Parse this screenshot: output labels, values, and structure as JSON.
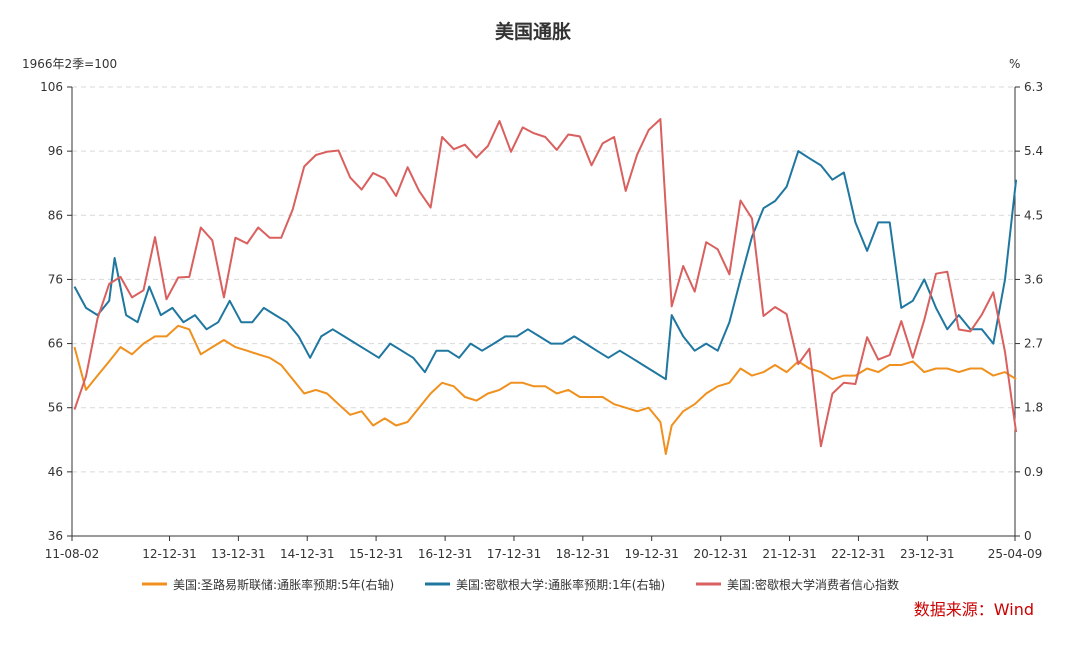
{
  "chart_data": {
    "type": "line",
    "title": "美国通胀",
    "left_unit": "1966年2季=100",
    "right_unit": "%",
    "ylim_left": [
      36,
      106
    ],
    "yticks_left": [
      "106",
      "96",
      "86",
      "76",
      "66",
      "56",
      "46",
      "36"
    ],
    "ylim_right": [
      0,
      6.3
    ],
    "yticks_right": [
      "6.3",
      "5.4",
      "4.5",
      "3.6",
      "2.7",
      "1.8",
      "0.9",
      "0"
    ],
    "x_tick_labels": [
      "11-08-02",
      "12-12-31",
      "13-12-31",
      "14-12-31",
      "15-12-31",
      "16-12-31",
      "17-12-31",
      "18-12-31",
      "19-12-31",
      "20-12-31",
      "21-12-31",
      "22-12-31",
      "23-12-31",
      "25-04-09"
    ],
    "x_range": [
      "2011-08-02",
      "2025-04-09"
    ],
    "grid": "horizontal dashed",
    "legend_position": "bottom",
    "source": "数据来源：Wind",
    "series": [
      {
        "name": "美国:圣路易斯联储:通胀率预期:5年(右轴)",
        "axis": "right",
        "color": "#f0901e",
        "x": [
          "2011-08",
          "2011-10",
          "2011-12",
          "2012-02",
          "2012-04",
          "2012-06",
          "2012-08",
          "2012-10",
          "2012-12",
          "2013-02",
          "2013-04",
          "2013-06",
          "2013-08",
          "2013-10",
          "2013-12",
          "2014-02",
          "2014-04",
          "2014-06",
          "2014-08",
          "2014-10",
          "2014-12",
          "2015-02",
          "2015-04",
          "2015-06",
          "2015-08",
          "2015-10",
          "2015-12",
          "2016-02",
          "2016-04",
          "2016-06",
          "2016-08",
          "2016-10",
          "2016-12",
          "2017-02",
          "2017-04",
          "2017-06",
          "2017-08",
          "2017-10",
          "2017-12",
          "2018-02",
          "2018-04",
          "2018-06",
          "2018-08",
          "2018-10",
          "2018-12",
          "2019-02",
          "2019-04",
          "2019-06",
          "2019-08",
          "2019-10",
          "2019-12",
          "2020-02",
          "2020-03",
          "2020-04",
          "2020-06",
          "2020-08",
          "2020-10",
          "2020-12",
          "2021-02",
          "2021-04",
          "2021-06",
          "2021-08",
          "2021-10",
          "2021-12",
          "2022-02",
          "2022-04",
          "2022-06",
          "2022-08",
          "2022-10",
          "2022-12",
          "2023-02",
          "2023-04",
          "2023-06",
          "2023-08",
          "2023-10",
          "2023-12",
          "2024-02",
          "2024-04",
          "2024-06",
          "2024-08",
          "2024-10",
          "2024-12",
          "2025-02",
          "2025-04"
        ],
        "values": [
          2.65,
          2.05,
          2.25,
          2.45,
          2.65,
          2.55,
          2.7,
          2.8,
          2.8,
          2.95,
          2.9,
          2.55,
          2.65,
          2.75,
          2.65,
          2.6,
          2.55,
          2.5,
          2.4,
          2.2,
          2.0,
          2.05,
          2.0,
          1.85,
          1.7,
          1.75,
          1.55,
          1.65,
          1.55,
          1.6,
          1.8,
          2.0,
          2.15,
          2.1,
          1.95,
          1.9,
          2.0,
          2.05,
          2.15,
          2.15,
          2.1,
          2.1,
          2.0,
          2.05,
          1.95,
          1.95,
          1.95,
          1.85,
          1.8,
          1.75,
          1.8,
          1.6,
          1.15,
          1.55,
          1.75,
          1.85,
          2.0,
          2.1,
          2.15,
          2.35,
          2.25,
          2.3,
          2.4,
          2.3,
          2.45,
          2.35,
          2.3,
          2.2,
          2.25,
          2.25,
          2.35,
          2.3,
          2.4,
          2.4,
          2.45,
          2.3,
          2.35,
          2.35,
          2.3,
          2.35,
          2.35,
          2.25,
          2.3,
          2.2
        ]
      },
      {
        "name": "美国:密歇根大学:通胀率预期:1年(右轴)",
        "axis": "right",
        "color": "#1f77a0",
        "x": [
          "2011-08",
          "2011-10",
          "2011-12",
          "2012-02",
          "2012-03",
          "2012-05",
          "2012-07",
          "2012-09",
          "2012-11",
          "2013-01",
          "2013-03",
          "2013-05",
          "2013-07",
          "2013-09",
          "2013-11",
          "2014-01",
          "2014-03",
          "2014-05",
          "2014-07",
          "2014-09",
          "2014-11",
          "2015-01",
          "2015-03",
          "2015-05",
          "2015-07",
          "2015-09",
          "2015-11",
          "2016-01",
          "2016-03",
          "2016-05",
          "2016-07",
          "2016-09",
          "2016-11",
          "2017-01",
          "2017-03",
          "2017-05",
          "2017-07",
          "2017-09",
          "2017-11",
          "2018-01",
          "2018-03",
          "2018-05",
          "2018-07",
          "2018-09",
          "2018-11",
          "2019-01",
          "2019-03",
          "2019-05",
          "2019-07",
          "2019-09",
          "2019-11",
          "2020-01",
          "2020-03",
          "2020-04",
          "2020-06",
          "2020-08",
          "2020-10",
          "2020-12",
          "2021-02",
          "2021-04",
          "2021-06",
          "2021-08",
          "2021-10",
          "2021-12",
          "2022-02",
          "2022-04",
          "2022-06",
          "2022-08",
          "2022-10",
          "2022-12",
          "2023-02",
          "2023-04",
          "2023-06",
          "2023-08",
          "2023-10",
          "2023-12",
          "2024-02",
          "2024-04",
          "2024-06",
          "2024-08",
          "2024-10",
          "2024-12",
          "2025-02",
          "2025-04"
        ],
        "values": [
          3.5,
          3.2,
          3.1,
          3.3,
          3.9,
          3.1,
          3.0,
          3.5,
          3.1,
          3.2,
          3.0,
          3.1,
          2.9,
          3.0,
          3.3,
          3.0,
          3.0,
          3.2,
          3.1,
          3.0,
          2.8,
          2.5,
          2.8,
          2.9,
          2.8,
          2.7,
          2.6,
          2.5,
          2.7,
          2.6,
          2.5,
          2.3,
          2.6,
          2.6,
          2.5,
          2.7,
          2.6,
          2.7,
          2.8,
          2.8,
          2.9,
          2.8,
          2.7,
          2.7,
          2.8,
          2.7,
          2.6,
          2.5,
          2.6,
          2.5,
          2.4,
          2.3,
          2.2,
          3.1,
          2.8,
          2.6,
          2.7,
          2.6,
          3.0,
          3.6,
          4.2,
          4.6,
          4.7,
          4.9,
          5.4,
          5.3,
          5.2,
          5.0,
          5.1,
          4.4,
          4.0,
          4.4,
          4.4,
          3.2,
          3.3,
          3.6,
          3.2,
          2.9,
          3.1,
          2.9,
          2.9,
          2.7,
          3.6,
          5.0
        ]
      },
      {
        "name": "美国:密歇根大学消费者信心指数",
        "axis": "left",
        "color": "#d9605e",
        "x": [
          "2011-08",
          "2011-10",
          "2011-12",
          "2012-02",
          "2012-04",
          "2012-06",
          "2012-08",
          "2012-10",
          "2012-12",
          "2013-02",
          "2013-04",
          "2013-06",
          "2013-08",
          "2013-10",
          "2013-12",
          "2014-02",
          "2014-04",
          "2014-06",
          "2014-08",
          "2014-10",
          "2014-12",
          "2015-02",
          "2015-04",
          "2015-06",
          "2015-08",
          "2015-10",
          "2015-12",
          "2016-02",
          "2016-04",
          "2016-06",
          "2016-08",
          "2016-10",
          "2016-12",
          "2017-02",
          "2017-04",
          "2017-06",
          "2017-08",
          "2017-10",
          "2017-12",
          "2018-02",
          "2018-04",
          "2018-06",
          "2018-08",
          "2018-10",
          "2018-12",
          "2019-02",
          "2019-04",
          "2019-06",
          "2019-08",
          "2019-10",
          "2019-12",
          "2020-02",
          "2020-04",
          "2020-06",
          "2020-08",
          "2020-10",
          "2020-12",
          "2021-02",
          "2021-04",
          "2021-06",
          "2021-08",
          "2021-10",
          "2021-12",
          "2022-02",
          "2022-04",
          "2022-06",
          "2022-08",
          "2022-10",
          "2022-12",
          "2023-02",
          "2023-04",
          "2023-06",
          "2023-08",
          "2023-10",
          "2023-12",
          "2024-02",
          "2024-04",
          "2024-06",
          "2024-08",
          "2024-10",
          "2024-12",
          "2025-02",
          "2025-04"
        ],
        "values": [
          55.7,
          60.9,
          69.9,
          75.3,
          76.4,
          73.2,
          74.3,
          82.6,
          72.9,
          76.3,
          76.4,
          84.1,
          82.1,
          73.2,
          82.5,
          81.6,
          84.1,
          82.5,
          82.5,
          86.9,
          93.6,
          95.4,
          95.9,
          96.1,
          91.9,
          90.0,
          92.6,
          91.7,
          89.0,
          93.5,
          89.8,
          87.2,
          98.2,
          96.3,
          97.0,
          95.0,
          96.8,
          100.7,
          95.9,
          99.7,
          98.8,
          98.2,
          96.2,
          98.6,
          98.3,
          93.8,
          97.2,
          98.2,
          89.8,
          95.5,
          99.3,
          101.0,
          71.8,
          78.1,
          74.1,
          81.8,
          80.7,
          76.8,
          88.3,
          85.5,
          70.3,
          71.7,
          70.6,
          62.8,
          65.2,
          50.0,
          58.2,
          59.9,
          59.7,
          67.0,
          63.5,
          64.2,
          69.5,
          63.8,
          69.7,
          76.9,
          77.2,
          68.2,
          67.9,
          70.5,
          74.0,
          64.7,
          52.2
        ]
      }
    ]
  }
}
